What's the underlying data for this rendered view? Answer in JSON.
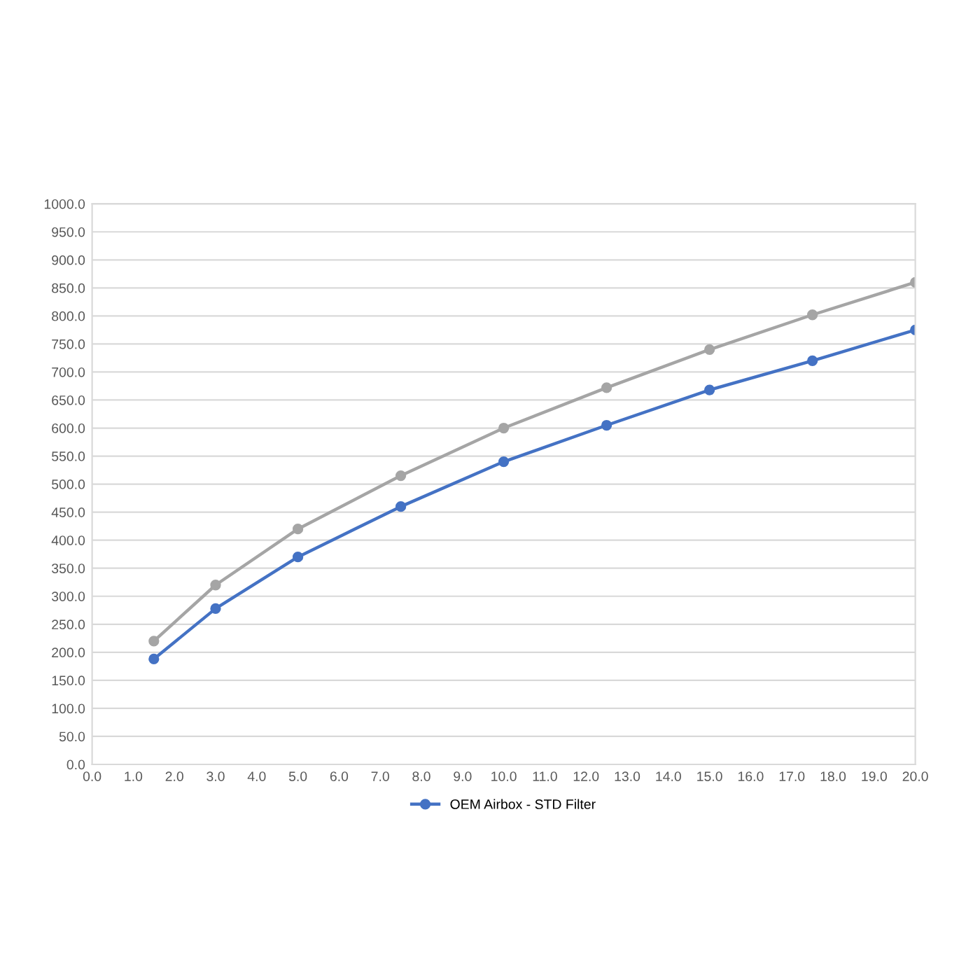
{
  "chart_data": {
    "type": "line",
    "x": [
      1.5,
      3,
      5,
      7.5,
      10,
      12.5,
      15,
      17.5,
      20
    ],
    "series": [
      {
        "name": "OEM Airbox - STD Filter",
        "color": "#4472c4",
        "values": [
          188,
          278,
          370,
          460,
          540,
          605,
          668,
          720,
          775
        ]
      },
      {
        "color": "#a5a5a5",
        "values": [
          220,
          320,
          420,
          515,
          600,
          672,
          740,
          802,
          860
        ]
      }
    ],
    "xlim": [
      0,
      20
    ],
    "xticks": [
      {
        "value": 0,
        "label": "0.0"
      },
      {
        "value": 1,
        "label": "1.0"
      },
      {
        "value": 2,
        "label": "2.0"
      },
      {
        "value": 3,
        "label": "3.0"
      },
      {
        "value": 4,
        "label": "4.0"
      },
      {
        "value": 5,
        "label": "5.0"
      },
      {
        "value": 6,
        "label": "6.0"
      },
      {
        "value": 7,
        "label": "7.0"
      },
      {
        "value": 8,
        "label": "8.0"
      },
      {
        "value": 9,
        "label": "9.0"
      },
      {
        "value": 10,
        "label": "10.0"
      },
      {
        "value": 11,
        "label": "11.0"
      },
      {
        "value": 12,
        "label": "12.0"
      },
      {
        "value": 13,
        "label": "13.0"
      },
      {
        "value": 14,
        "label": "14.0"
      },
      {
        "value": 15,
        "label": "15.0"
      },
      {
        "value": 16,
        "label": "16.0"
      },
      {
        "value": 17,
        "label": "17.0"
      },
      {
        "value": 18,
        "label": "18.0"
      },
      {
        "value": 19,
        "label": "19.0"
      },
      {
        "value": 20,
        "label": "20.0"
      }
    ],
    "ylim": [
      0,
      1000
    ],
    "yticks": [
      {
        "value": 0,
        "label": "0.0"
      },
      {
        "value": 50,
        "label": "50.0"
      },
      {
        "value": 100,
        "label": "100.0"
      },
      {
        "value": 150,
        "label": "150.0"
      },
      {
        "value": 200,
        "label": "200.0"
      },
      {
        "value": 250,
        "label": "250.0"
      },
      {
        "value": 300,
        "label": "300.0"
      },
      {
        "value": 350,
        "label": "350.0"
      },
      {
        "value": 400,
        "label": "400.0"
      },
      {
        "value": 450,
        "label": "450.0"
      },
      {
        "value": 500,
        "label": "500.0"
      },
      {
        "value": 550,
        "label": "550.0"
      },
      {
        "value": 600,
        "label": "600.0"
      },
      {
        "value": 650,
        "label": "650.0"
      },
      {
        "value": 700,
        "label": "700.0"
      },
      {
        "value": 750,
        "label": "750.0"
      },
      {
        "value": 800,
        "label": "800.0"
      },
      {
        "value": 850,
        "label": "850.0"
      },
      {
        "value": 900,
        "label": "900.0"
      },
      {
        "value": 950,
        "label": "950.0"
      },
      {
        "value": 1000,
        "label": "1000.0"
      }
    ],
    "grid": "y",
    "legend": "bottom",
    "marker": "circle",
    "line_style": "solid"
  }
}
